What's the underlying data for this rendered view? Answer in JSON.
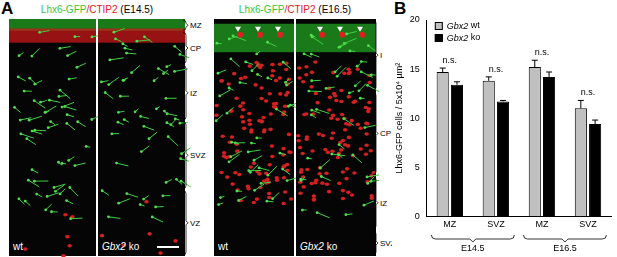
{
  "panel_labels": [
    "A",
    "B"
  ],
  "images": [
    {
      "title": [
        {
          "text": "Lhx6-GFP",
          "color": "#39c439"
        },
        {
          "text": "/CTIP2",
          "color": "#e02020"
        },
        {
          "text": " (E14.5)",
          "color": "#000000"
        }
      ],
      "panels": [
        "wt",
        "Gbx2 ko"
      ],
      "layers": [
        "MZ",
        "CP",
        "IZ",
        "SVZ",
        "VZ"
      ]
    },
    {
      "title": [
        {
          "text": "Lhx6-GFP",
          "color": "#39c439"
        },
        {
          "text": "/CTIP2",
          "color": "#e02020"
        },
        {
          "text": " (E16.5)",
          "color": "#000000"
        }
      ],
      "panels": [
        "wt",
        "Gbx2 ko"
      ],
      "layers": [
        "I",
        "CP",
        "IZ",
        "SVZ"
      ]
    }
  ],
  "chart_data": {
    "type": "bar",
    "y_label": "Lhx6-GFP cells / 5x10⁴ µm²",
    "categories": [
      "MZ",
      "SVZ",
      "MZ",
      "SVZ"
    ],
    "groups": [
      {
        "label": "E14.5",
        "span": 2
      },
      {
        "label": "E16.5",
        "span": 2
      }
    ],
    "series": [
      {
        "name": "Gbx2 wt",
        "color": "#c0c0c0",
        "values": [
          14.7,
          13.8,
          15.2,
          11.0
        ],
        "errors": [
          0.4,
          0.4,
          0.7,
          0.8
        ]
      },
      {
        "name": "Gbx2 ko",
        "color": "#000000",
        "values": [
          13.4,
          11.7,
          14.2,
          9.4
        ],
        "errors": [
          0.3,
          0.1,
          0.5,
          0.4
        ]
      }
    ],
    "annotations": [
      "n.s.",
      "n.s.",
      "n.s.",
      "n.s."
    ],
    "ylim": [
      0,
      20
    ],
    "yticks": [
      0,
      5,
      10,
      15,
      20
    ],
    "grid": false,
    "legend": "upper left"
  }
}
